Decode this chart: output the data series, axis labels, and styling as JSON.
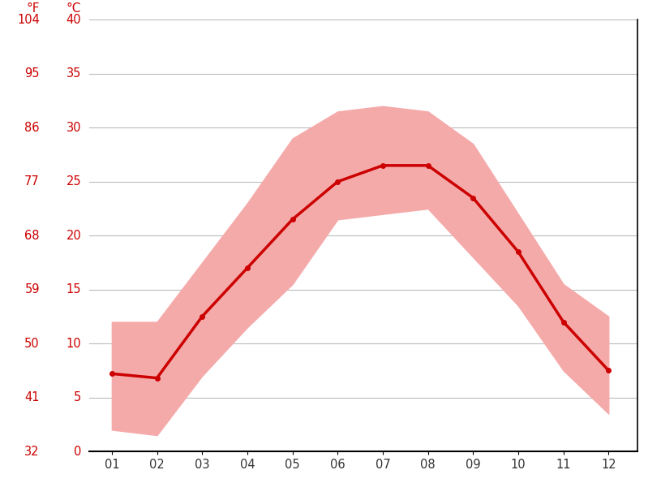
{
  "months": [
    1,
    2,
    3,
    4,
    5,
    6,
    7,
    8,
    9,
    10,
    11,
    12
  ],
  "month_labels": [
    "01",
    "02",
    "03",
    "04",
    "05",
    "06",
    "07",
    "08",
    "09",
    "10",
    "11",
    "12"
  ],
  "avg_temp_c": [
    7.2,
    6.8,
    12.5,
    17.0,
    21.5,
    25.0,
    26.5,
    26.5,
    23.5,
    18.5,
    12.0,
    7.5
  ],
  "max_temp_c": [
    12.0,
    12.0,
    17.5,
    23.0,
    29.0,
    31.5,
    32.0,
    31.5,
    28.5,
    22.0,
    15.5,
    12.5
  ],
  "min_temp_c": [
    2.0,
    1.5,
    7.0,
    11.5,
    15.5,
    21.5,
    22.0,
    22.5,
    18.0,
    13.5,
    7.5,
    3.5
  ],
  "ylim_c": [
    0,
    40
  ],
  "yticks_c": [
    0,
    5,
    10,
    15,
    20,
    25,
    30,
    35,
    40
  ],
  "yticks_f": [
    32,
    41,
    50,
    59,
    68,
    77,
    86,
    95,
    104
  ],
  "line_color": "#cc0000",
  "fill_color": "#f5aaaa",
  "bg_color": "#ffffff",
  "grid_color": "#bbbbbb",
  "label_color": "#cc0000",
  "axis_color": "#000000",
  "figwidth": 8.15,
  "figheight": 6.11,
  "dpi": 100
}
